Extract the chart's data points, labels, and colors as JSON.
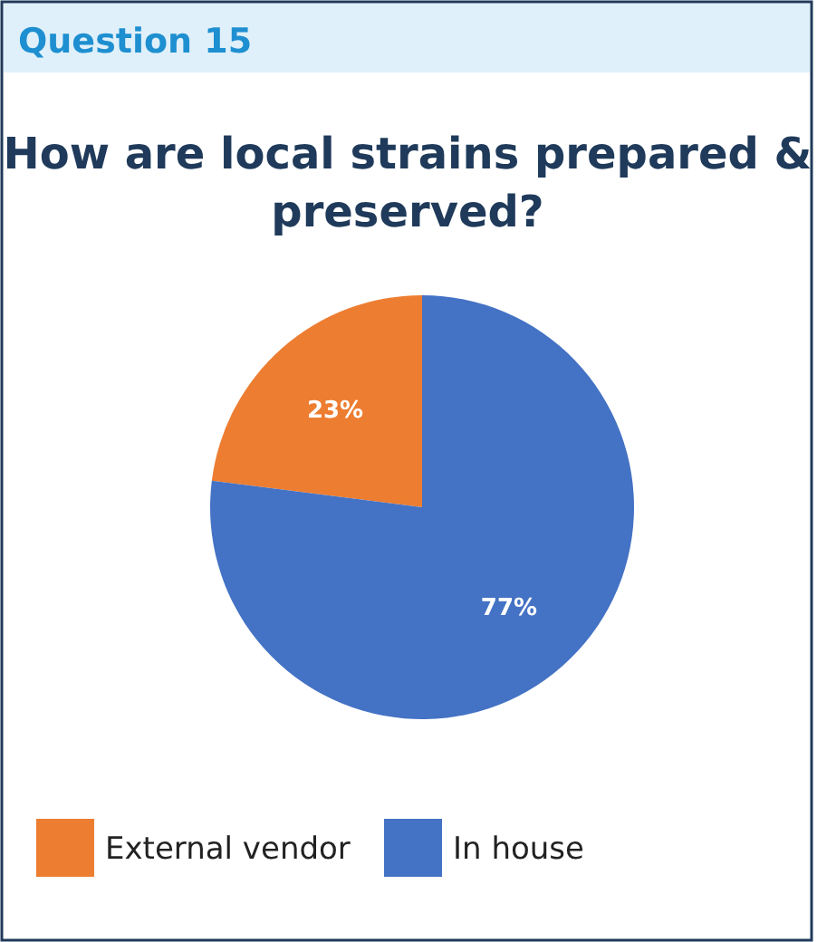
{
  "chart_data": {
    "type": "pie",
    "title": "How are local strains prepared & preserved?",
    "annotations": [
      "Question 15"
    ],
    "categories": [
      "External vendor",
      "In house"
    ],
    "values": [
      23,
      77
    ],
    "colors": [
      "#ed7d31",
      "#4472c4"
    ],
    "value_labels": [
      "23%",
      "77%"
    ],
    "legend": "bottom"
  }
}
